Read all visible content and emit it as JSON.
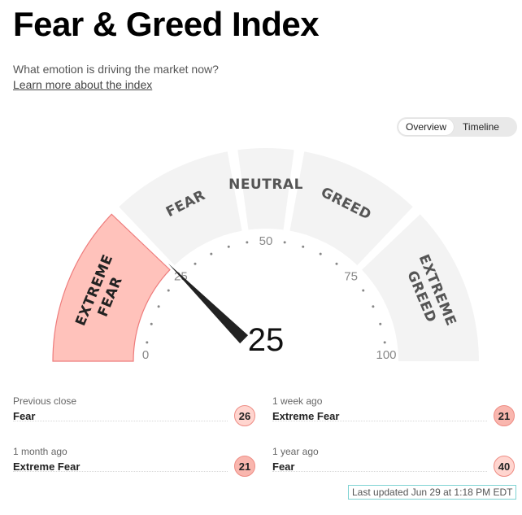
{
  "header": {
    "title": "Fear & Greed Index",
    "subtitle": "What emotion is driving the market now?",
    "learn_more": "Learn more about the index"
  },
  "view_toggle": {
    "options": [
      "Overview",
      "Timeline"
    ],
    "selected": "Overview"
  },
  "gauge": {
    "value": 25,
    "value_label": "25",
    "rating": "Extreme Fear",
    "segments": [
      {
        "name": "extreme-fear",
        "lines": [
          "EXTREME",
          "FEAR"
        ],
        "range": [
          0,
          25
        ],
        "active": true
      },
      {
        "name": "fear",
        "lines": [
          "FEAR"
        ],
        "range": [
          25,
          45
        ],
        "active": false
      },
      {
        "name": "neutral",
        "lines": [
          "NEUTRAL"
        ],
        "range": [
          45,
          55
        ],
        "active": false
      },
      {
        "name": "greed",
        "lines": [
          "GREED"
        ],
        "range": [
          55,
          75
        ],
        "active": false
      },
      {
        "name": "extreme-greed",
        "lines": [
          "EXTREME",
          "GREED"
        ],
        "range": [
          75,
          100
        ],
        "active": false
      }
    ],
    "scale_labels": [
      {
        "value": 0,
        "text": "0"
      },
      {
        "value": 25,
        "text": "25"
      },
      {
        "value": 50,
        "text": "50"
      },
      {
        "value": 75,
        "text": "75"
      },
      {
        "value": 100,
        "text": "100"
      }
    ],
    "colors": {
      "segment_bg": "#f3f3f3",
      "active_fill": "#ffc2bb",
      "active_stroke": "#ee7c7c",
      "needle": "#222222",
      "tick_dots": "#888888"
    }
  },
  "history": [
    {
      "name": "previous-close",
      "label": "Previous close",
      "rating": "Fear",
      "value": "26",
      "color": "#ffd5cf"
    },
    {
      "name": "one-week-ago",
      "label": "1 week ago",
      "rating": "Extreme Fear",
      "value": "21",
      "color": "#f9b6ae"
    },
    {
      "name": "one-month-ago",
      "label": "1 month ago",
      "rating": "Extreme Fear",
      "value": "21",
      "color": "#f9b6ae"
    },
    {
      "name": "one-year-ago",
      "label": "1 year ago",
      "rating": "Fear",
      "value": "40",
      "color": "#ffd5cf"
    }
  ],
  "last_updated": "Last updated Jun 29 at 1:18 PM EDT"
}
